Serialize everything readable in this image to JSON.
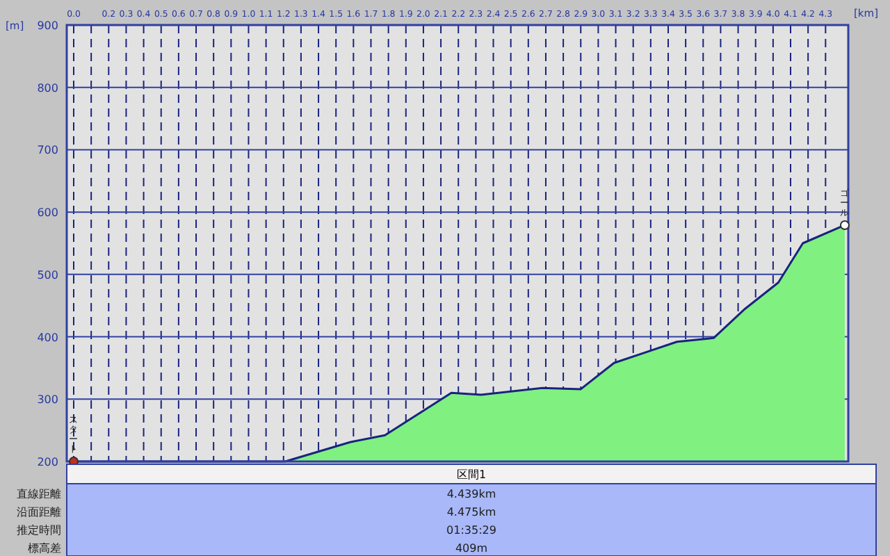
{
  "chart_data": {
    "type": "area",
    "xlabel": "[km]",
    "ylabel": "[m]",
    "x": [
      0,
      1.21,
      1.58,
      1.78,
      2.16,
      2.33,
      2.68,
      2.9,
      3.09,
      3.26,
      3.45,
      3.66,
      3.84,
      4.03,
      4.17,
      4.41
    ],
    "series": [
      {
        "color": "#80f080",
        "values": [
          200,
          200,
          231,
          242,
          310,
          307,
          318,
          316,
          358,
          374,
          392,
          398,
          445,
          487,
          550,
          579
        ]
      }
    ],
    "xlim": [
      0,
      4.43
    ],
    "xticks": [
      {
        "value": 0,
        "label": "0.0"
      },
      {
        "value": 0.1,
        "label": null
      },
      0.2,
      0.3,
      0.4,
      0.5,
      0.6,
      0.7,
      0.8,
      0.9,
      {
        "value": 1,
        "label": "1.0"
      },
      1.1,
      1.2,
      1.3,
      1.4,
      1.5,
      1.6,
      1.7,
      1.8,
      1.9,
      {
        "value": 2,
        "label": "2.0"
      },
      2.1,
      2.2,
      2.3,
      2.4,
      2.5,
      2.6,
      2.7,
      2.8,
      2.9,
      {
        "value": 3,
        "label": "3.0"
      },
      3.1,
      3.2,
      3.3,
      3.4,
      3.5,
      3.6,
      3.7,
      3.8,
      3.9,
      {
        "value": 4,
        "label": "4.0"
      },
      4.1,
      4.2,
      4.3
    ],
    "ylim": [
      200,
      900
    ],
    "yticks": [
      200,
      300,
      400,
      500,
      600,
      700,
      800,
      900
    ],
    "grid": true,
    "annotations": [
      {
        "text": "スタート",
        "x": 0,
        "y": 200
      },
      {
        "text": "ゴール",
        "x": 4.41,
        "y": 579
      },
      "区間1",
      "直線距離",
      "4.439km",
      "沿面距離",
      "4.475km",
      "推定時間",
      "01:35:29",
      "標高差",
      "409m"
    ]
  }
}
